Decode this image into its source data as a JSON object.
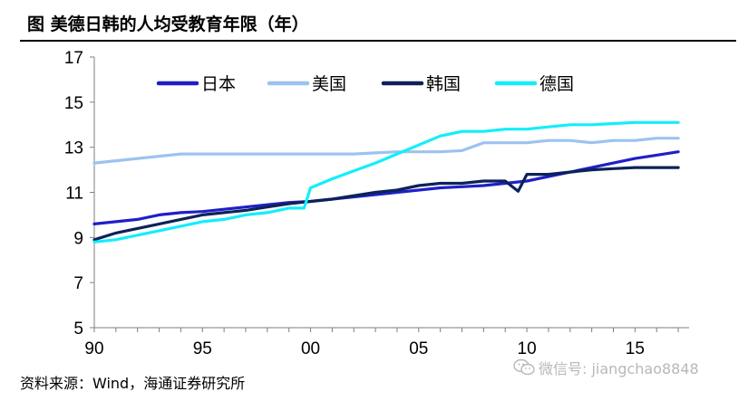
{
  "header": {
    "title": "图  美德日韩的人均受教育年限（年）"
  },
  "source": "资料来源：Wind，海通证券研究所",
  "watermark": {
    "text": "微信号: jiangchao8848",
    "icon": "wechat-icon"
  },
  "chart_data": {
    "type": "line",
    "title": "美德日韩的人均受教育年限（年）",
    "xlabel": "",
    "ylabel": "",
    "ylim": [
      5,
      17
    ],
    "xlim": [
      1990,
      2017.5
    ],
    "yticks": [
      "5",
      "7",
      "9",
      "11",
      "13",
      "15",
      "17"
    ],
    "xticks": [
      {
        "value": 1990,
        "label": "90"
      },
      {
        "value": 1995,
        "label": "95"
      },
      {
        "value": 2000,
        "label": "00"
      },
      {
        "value": 2005,
        "label": "05"
      },
      {
        "value": 2010,
        "label": "10"
      },
      {
        "value": 2015,
        "label": "15"
      }
    ],
    "grid": false,
    "legend_position": "top",
    "series": [
      {
        "name": "日本",
        "color": "#1f1fc8",
        "x": [
          1990,
          1991,
          1992,
          1993,
          1994,
          1995,
          1996,
          1997,
          1998,
          1999,
          2000,
          2001,
          2002,
          2003,
          2004,
          2005,
          2006,
          2007,
          2008,
          2009,
          2010,
          2011,
          2012,
          2013,
          2014,
          2015,
          2016,
          2017
        ],
        "y": [
          9.6,
          9.7,
          9.8,
          10.0,
          10.1,
          10.15,
          10.25,
          10.35,
          10.45,
          10.55,
          10.6,
          10.7,
          10.8,
          10.9,
          11.0,
          11.1,
          11.2,
          11.25,
          11.3,
          11.4,
          11.5,
          11.7,
          11.9,
          12.1,
          12.3,
          12.5,
          12.65,
          12.8
        ]
      },
      {
        "name": "美国",
        "color": "#9cc3ef",
        "x": [
          1990,
          1991,
          1992,
          1993,
          1994,
          1995,
          1996,
          1997,
          1998,
          1999,
          2000,
          2001,
          2002,
          2003,
          2004,
          2005,
          2006,
          2007,
          2008,
          2009,
          2010,
          2011,
          2012,
          2013,
          2014,
          2015,
          2016,
          2017
        ],
        "y": [
          12.3,
          12.4,
          12.5,
          12.6,
          12.7,
          12.7,
          12.7,
          12.7,
          12.7,
          12.7,
          12.7,
          12.7,
          12.7,
          12.75,
          12.8,
          12.8,
          12.8,
          12.85,
          13.2,
          13.2,
          13.2,
          13.3,
          13.3,
          13.2,
          13.3,
          13.3,
          13.4,
          13.4
        ]
      },
      {
        "name": "韩国",
        "color": "#0c2258",
        "x": [
          1990,
          1991,
          1992,
          1993,
          1994,
          1995,
          1996,
          1997,
          1998,
          1999,
          2000,
          2001,
          2002,
          2003,
          2004,
          2005,
          2006,
          2007,
          2008,
          2009,
          2009.6,
          2010,
          2011,
          2012,
          2013,
          2014,
          2015,
          2016,
          2017
        ],
        "y": [
          8.9,
          9.2,
          9.4,
          9.6,
          9.8,
          10.0,
          10.1,
          10.2,
          10.35,
          10.5,
          10.6,
          10.7,
          10.85,
          11.0,
          11.1,
          11.3,
          11.4,
          11.4,
          11.5,
          11.5,
          11.05,
          11.8,
          11.8,
          11.9,
          12.0,
          12.05,
          12.1,
          12.1,
          12.1
        ]
      },
      {
        "name": "德国",
        "color": "#13eefa",
        "x": [
          1990,
          1991,
          1992,
          1993,
          1994,
          1995,
          1996,
          1997,
          1998,
          1999,
          1999.7,
          2000,
          2001,
          2002,
          2003,
          2004,
          2005,
          2006,
          2007,
          2008,
          2009,
          2010,
          2011,
          2012,
          2013,
          2014,
          2015,
          2016,
          2017
        ],
        "y": [
          8.8,
          8.9,
          9.1,
          9.3,
          9.5,
          9.7,
          9.8,
          10.0,
          10.1,
          10.3,
          10.3,
          11.2,
          11.6,
          11.95,
          12.3,
          12.7,
          13.1,
          13.5,
          13.7,
          13.7,
          13.8,
          13.8,
          13.9,
          14.0,
          14.0,
          14.05,
          14.1,
          14.1,
          14.1
        ]
      }
    ]
  }
}
